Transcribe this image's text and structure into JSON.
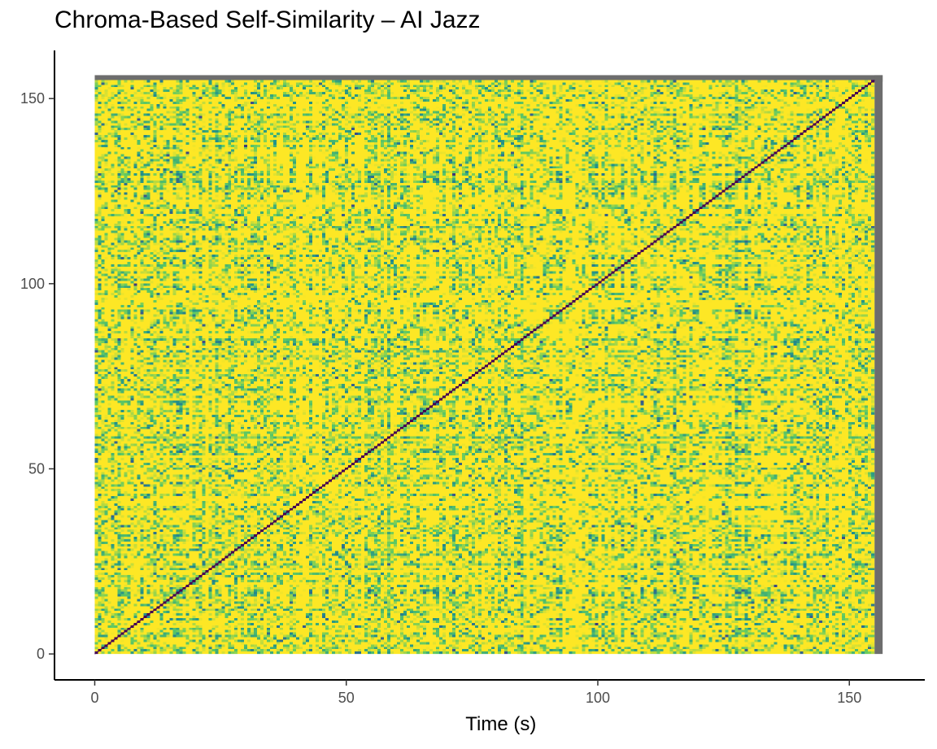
{
  "chart_data": {
    "type": "heatmap",
    "title": "Chroma-Based Self-Similarity – AI Jazz",
    "xlabel": "Time (s)",
    "ylabel": "",
    "x_ticks": [
      "0",
      "50",
      "100",
      "150"
    ],
    "y_ticks": [
      "0",
      "50",
      "100",
      "150"
    ],
    "x_tick_values": [
      0,
      50,
      100,
      150
    ],
    "y_tick_values": [
      0,
      50,
      100,
      150
    ],
    "xlim": [
      -8,
      165
    ],
    "ylim": [
      -7,
      163
    ],
    "grid": false,
    "legend": "none",
    "time_range": [
      0,
      155
    ],
    "colormap": [
      "#440154",
      "#3b528b",
      "#21908c",
      "#5dc863",
      "#fde725"
    ],
    "padding_color": "#6d6d6d"
  }
}
